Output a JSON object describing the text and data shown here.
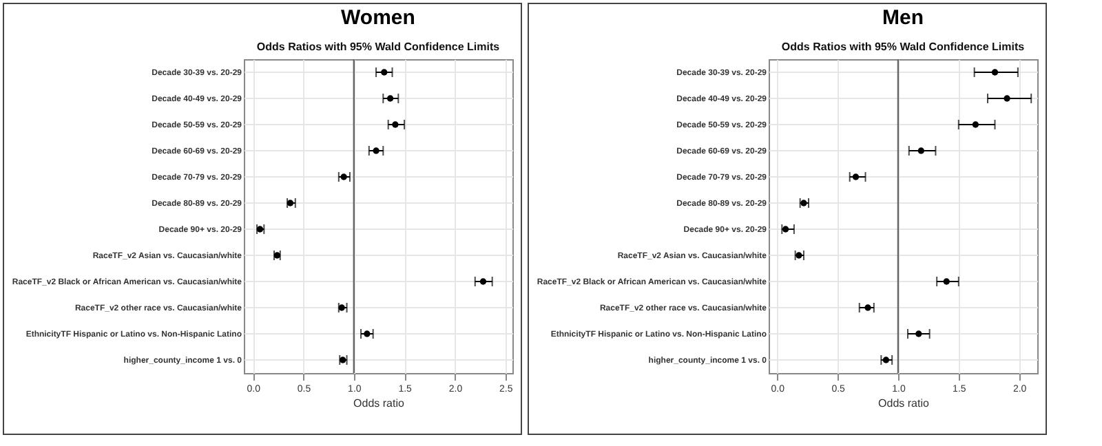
{
  "chart_data": [
    {
      "type": "scatter",
      "title": "Women",
      "subtitle": "Odds Ratios with 95% Wald Confidence Limits",
      "xlabel": "Odds ratio",
      "orientation": "horizontal",
      "marker": "circle",
      "grid": true,
      "categories": [
        "Decade 30-39 vs. 20-29",
        "Decade 40-49 vs. 20-29",
        "Decade 50-59 vs. 20-29",
        "Decade 60-69 vs. 20-29",
        "Decade 70-79 vs. 20-29",
        "Decade 80-89 vs. 20-29",
        "Decade 90+ vs. 20-29",
        "RaceTF_v2 Asian vs. Caucasian/white",
        "RaceTF_v2 Black or African American vs. Caucasian/white",
        "RaceTF_v2 other race vs. Caucasian/white",
        "EthnicityTF Hispanic or Latino vs. Non-Hispanic Latino",
        "higher_county_income 1 vs. 0"
      ],
      "series": [
        {
          "color": "#000000",
          "values": [
            1.3,
            1.36,
            1.41,
            1.22,
            0.9,
            0.37,
            0.07,
            0.24,
            2.28,
            0.88,
            1.13,
            0.89
          ],
          "errors": [
            [
              1.22,
              1.38
            ],
            [
              1.29,
              1.44
            ],
            [
              1.34,
              1.5
            ],
            [
              1.15,
              1.29
            ],
            [
              0.85,
              0.96
            ],
            [
              0.34,
              0.42
            ],
            [
              0.04,
              0.11
            ],
            [
              0.21,
              0.27
            ],
            [
              2.2,
              2.37
            ],
            [
              0.85,
              0.93
            ],
            [
              1.07,
              1.19
            ],
            [
              0.86,
              0.93
            ]
          ]
        }
      ],
      "xlim": [
        -0.09,
        2.57
      ],
      "xticks": [
        {
          "value": 0,
          "label": "0.0"
        },
        0.5,
        {
          "value": 1,
          "label": "1.0"
        },
        1.5,
        {
          "value": 2,
          "label": "2.0"
        },
        2.5
      ],
      "ref_lines": [
        {
          "axis": "x",
          "value": 1,
          "color": "#666666"
        }
      ]
    },
    {
      "type": "scatter",
      "title": "Men",
      "subtitle": "Odds Ratios with 95% Wald Confidence Limits",
      "xlabel": "Odds ratio",
      "orientation": "horizontal",
      "marker": "circle",
      "grid": true,
      "categories": [
        "Decade 30-39 vs. 20-29",
        "Decade 40-49 vs. 20-29",
        "Decade 50-59 vs. 20-29",
        "Decade 60-69 vs. 20-29",
        "Decade 70-79 vs. 20-29",
        "Decade 80-89 vs. 20-29",
        "Decade 90+ vs. 20-29",
        "RaceTF_v2 Asian vs. Caucasian/white",
        "RaceTF_v2 Black or African American vs. Caucasian/white",
        "RaceTF_v2 other race vs. Caucasian/white",
        "EthnicityTF Hispanic or Latino vs. Non-Hispanic Latino",
        "higher_county_income 1 vs. 0"
      ],
      "series": [
        {
          "color": "#000000",
          "values": [
            1.8,
            1.9,
            1.64,
            1.19,
            0.65,
            0.22,
            0.07,
            0.18,
            1.4,
            0.75,
            1.17,
            0.9
          ],
          "errors": [
            [
              1.63,
              1.99
            ],
            [
              1.74,
              2.1
            ],
            [
              1.5,
              1.8
            ],
            [
              1.09,
              1.31
            ],
            [
              0.6,
              0.73
            ],
            [
              0.19,
              0.26
            ],
            [
              0.04,
              0.14
            ],
            [
              0.15,
              0.22
            ],
            [
              1.32,
              1.5
            ],
            [
              0.68,
              0.8
            ],
            [
              1.08,
              1.26
            ],
            [
              0.86,
              0.95
            ]
          ]
        }
      ],
      "xlim": [
        -0.07,
        2.15
      ],
      "xticks": [
        {
          "value": 0,
          "label": "0.0"
        },
        0.5,
        {
          "value": 1,
          "label": "1.0"
        },
        1.5,
        {
          "value": 2,
          "label": "2.0"
        }
      ],
      "ref_lines": [
        {
          "axis": "x",
          "value": 1,
          "color": "#666666"
        }
      ]
    }
  ]
}
